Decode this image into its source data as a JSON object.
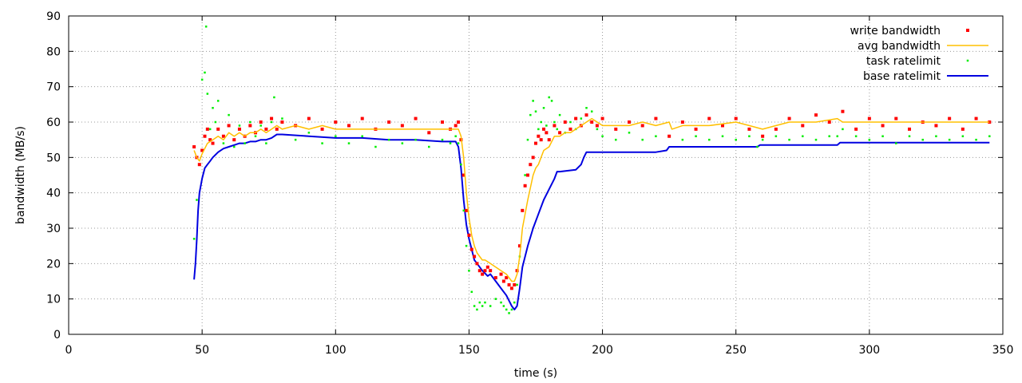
{
  "chart_data": {
    "type": "line",
    "title": "",
    "xlabel": "time (s)",
    "ylabel": "bandwidth (MB/s)",
    "xlim": [
      0,
      350
    ],
    "ylim": [
      0,
      90
    ],
    "x_ticks": [
      0,
      50,
      100,
      150,
      200,
      250,
      300,
      350
    ],
    "y_ticks": [
      0,
      10,
      20,
      30,
      40,
      50,
      60,
      70,
      80,
      90
    ],
    "grid": true,
    "grid_style": "dotted",
    "legend": {
      "placement": "top-right"
    },
    "series": [
      {
        "name": "write bandwidth",
        "style": "points",
        "color": "#ff0000",
        "x": [
          47,
          48,
          49,
          50,
          51,
          52,
          53,
          54,
          56,
          58,
          60,
          62,
          64,
          66,
          68,
          70,
          72,
          74,
          76,
          78,
          80,
          85,
          90,
          95,
          100,
          105,
          110,
          115,
          120,
          125,
          130,
          135,
          140,
          143,
          145,
          146,
          147,
          148,
          149,
          150,
          151,
          152,
          153,
          154,
          155,
          156,
          157,
          158,
          160,
          162,
          163,
          164,
          165,
          166,
          167,
          168,
          169,
          170,
          171,
          172,
          173,
          174,
          175,
          176,
          177,
          178,
          179,
          180,
          182,
          184,
          186,
          188,
          190,
          192,
          194,
          196,
          198,
          200,
          205,
          210,
          215,
          220,
          225,
          230,
          235,
          240,
          245,
          250,
          255,
          260,
          265,
          270,
          275,
          280,
          285,
          290,
          295,
          300,
          305,
          310,
          315,
          320,
          325,
          330,
          335,
          340,
          345
        ],
        "values": [
          53,
          50,
          48,
          52,
          56,
          58,
          55,
          54,
          58,
          56,
          59,
          55,
          58,
          56,
          59,
          57,
          60,
          58,
          61,
          58,
          60,
          59,
          61,
          58,
          60,
          59,
          61,
          58,
          60,
          59,
          61,
          57,
          60,
          58,
          59,
          60,
          55,
          45,
          35,
          28,
          24,
          22,
          20,
          18,
          17,
          18,
          19,
          18,
          16,
          17,
          15,
          16,
          14,
          13,
          14,
          18,
          25,
          35,
          42,
          45,
          48,
          50,
          54,
          56,
          55,
          58,
          57,
          55,
          59,
          57,
          60,
          58,
          61,
          59,
          62,
          60,
          59,
          61,
          58,
          60,
          59,
          61,
          56,
          60,
          58,
          61,
          59,
          61,
          58,
          56,
          58,
          61,
          59,
          62,
          60,
          63,
          58,
          61,
          59,
          61,
          58,
          60,
          59,
          61,
          58,
          61,
          60
        ]
      },
      {
        "name": "avg bandwidth",
        "style": "line",
        "color": "#ffc000",
        "x": [
          47,
          48,
          49,
          50,
          52,
          54,
          56,
          58,
          60,
          62,
          64,
          66,
          68,
          70,
          72,
          74,
          76,
          78,
          80,
          85,
          90,
          95,
          100,
          110,
          120,
          130,
          140,
          145,
          146,
          147,
          148,
          149,
          150,
          151,
          152,
          153,
          154,
          155,
          156,
          158,
          160,
          162,
          164,
          166,
          167,
          168,
          169,
          170,
          172,
          174,
          175,
          176,
          178,
          180,
          182,
          184,
          186,
          188,
          190,
          192,
          194,
          196,
          198,
          200,
          205,
          210,
          215,
          220,
          225,
          226,
          230,
          240,
          250,
          255,
          260,
          265,
          270,
          280,
          288,
          290,
          300,
          310,
          320,
          330,
          340,
          345
        ],
        "values": [
          52,
          50,
          49,
          51,
          54,
          55,
          56,
          55,
          57,
          56,
          57,
          56,
          57,
          57,
          58,
          57,
          58,
          59,
          58,
          59,
          58,
          59,
          58,
          58,
          58,
          58,
          58,
          58,
          58,
          56,
          50,
          40,
          33,
          28,
          25,
          23,
          22,
          21,
          21,
          20,
          19,
          18,
          17,
          15,
          15,
          17,
          22,
          30,
          38,
          45,
          47,
          48,
          52,
          53,
          56,
          56,
          57,
          57,
          58,
          59,
          60,
          61,
          60,
          59,
          59,
          59,
          60,
          59,
          60,
          58,
          59,
          59,
          60,
          59,
          58,
          59,
          60,
          60,
          61,
          60,
          60,
          60,
          60,
          60,
          60,
          60
        ]
      },
      {
        "name": "task ratelimit",
        "style": "points",
        "color": "#00ee00",
        "x": [
          47,
          48,
          49,
          50,
          51,
          51.5,
          52,
          53,
          54,
          55,
          56,
          58,
          60,
          62,
          64,
          66,
          68,
          70,
          72,
          74,
          76,
          77,
          78,
          80,
          85,
          90,
          95,
          100,
          105,
          110,
          115,
          120,
          125,
          130,
          135,
          140,
          143,
          145,
          146,
          147,
          148,
          149,
          150,
          151,
          152,
          153,
          154,
          155,
          156,
          158,
          160,
          162,
          163,
          164,
          165,
          166,
          167,
          168,
          169,
          170,
          171,
          172,
          173,
          174,
          175,
          176,
          177,
          178,
          179,
          180,
          181,
          182,
          183,
          184,
          186,
          188,
          190,
          192,
          194,
          196,
          198,
          200,
          205,
          210,
          215,
          220,
          225,
          230,
          235,
          240,
          245,
          250,
          255,
          258,
          260,
          265,
          270,
          275,
          280,
          285,
          288,
          290,
          295,
          300,
          305,
          310,
          315,
          320,
          325,
          330,
          335,
          340,
          345
        ],
        "values": [
          27,
          38,
          48,
          72,
          74,
          87,
          68,
          58,
          64,
          60,
          66,
          54,
          62,
          53,
          59,
          54,
          60,
          56,
          59,
          54,
          60,
          67,
          58,
          61,
          55,
          57,
          54,
          56,
          54,
          56,
          53,
          55,
          54,
          55,
          53,
          55,
          54,
          56,
          54,
          48,
          35,
          25,
          18,
          12,
          8,
          7,
          9,
          8,
          9,
          8,
          10,
          9,
          8,
          7,
          6,
          7,
          9,
          14,
          22,
          35,
          45,
          55,
          62,
          66,
          63,
          58,
          60,
          64,
          59,
          67,
          66,
          60,
          58,
          62,
          57,
          60,
          58,
          61,
          64,
          63,
          58,
          56,
          55,
          57,
          55,
          56,
          56,
          55,
          56,
          55,
          56,
          55,
          56,
          53,
          55,
          56,
          55,
          56,
          55,
          56,
          56,
          58,
          56,
          55,
          56,
          54,
          56,
          55,
          56,
          55,
          56,
          55,
          56
        ]
      },
      {
        "name": "base ratelimit",
        "style": "line",
        "color": "#0000e0",
        "x": [
          47,
          47.5,
          48,
          48.5,
          49,
          50,
          51,
          52,
          53,
          54,
          56,
          58,
          60,
          62,
          64,
          66,
          68,
          70,
          72,
          74,
          76,
          78,
          80,
          90,
          100,
          110,
          120,
          130,
          140,
          145,
          146,
          147,
          148,
          149,
          150,
          151,
          152,
          153,
          155,
          157,
          158,
          160,
          162,
          164,
          166,
          167,
          168,
          169,
          170,
          172,
          174,
          176,
          178,
          180,
          182,
          183,
          184,
          190,
          192,
          193,
          194,
          195,
          196,
          200,
          210,
          220,
          224,
          225,
          240,
          258,
          259,
          270,
          288,
          289,
          300,
          320,
          345
        ],
        "values": [
          15.5,
          20,
          27,
          35,
          40,
          44,
          47,
          48,
          49,
          50,
          51.5,
          52.5,
          53,
          53.5,
          54,
          54,
          54.5,
          54.5,
          55,
          55,
          55.5,
          56.5,
          56.5,
          56,
          55.5,
          55.5,
          55,
          55,
          54.5,
          54.5,
          53,
          47,
          38,
          31,
          27,
          24,
          21,
          20,
          18,
          16.5,
          17,
          15,
          13,
          11,
          8,
          7,
          8,
          13,
          19,
          25,
          30,
          34,
          38,
          41,
          44,
          46,
          46,
          46.5,
          48,
          50,
          51.5,
          51.5,
          51.5,
          51.5,
          51.5,
          51.5,
          52,
          53,
          53,
          53,
          53.5,
          53.5,
          53.5,
          54.2,
          54.2,
          54.2,
          54.2
        ]
      }
    ]
  }
}
